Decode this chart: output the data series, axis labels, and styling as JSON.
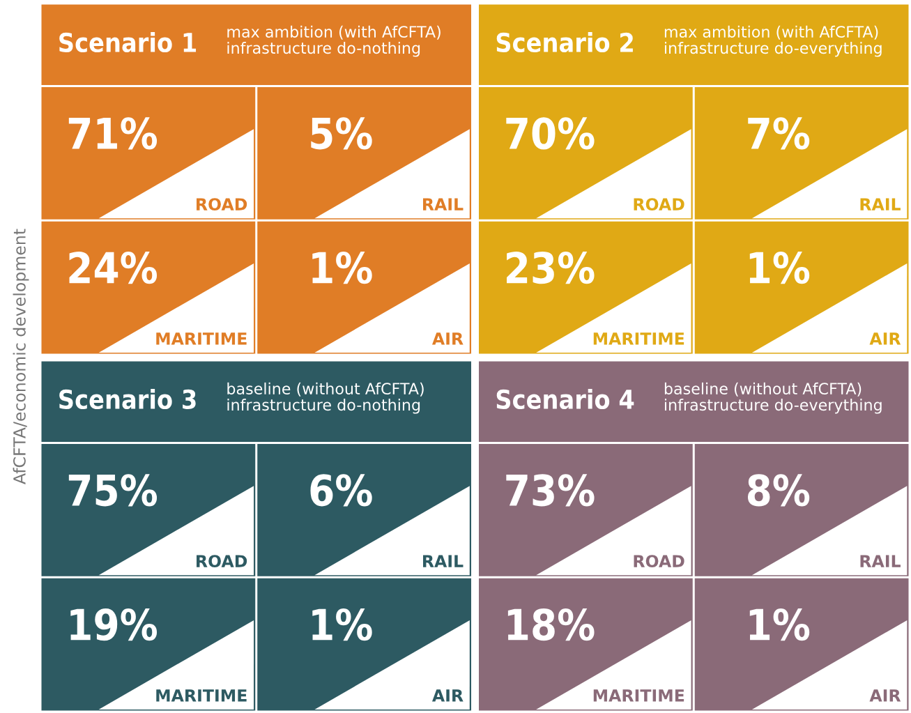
{
  "chart_data": [
    {
      "type": "other",
      "title": "Scenario 1",
      "subtitle": "max ambition (with AfCFTA)\ninfrastructure do-nothing",
      "ylabel": "AfCFTA/economic development",
      "color": "#e07d26",
      "categories": [
        "ROAD",
        "RAIL",
        "MARITIME",
        "AIR"
      ],
      "values": [
        71,
        5,
        24,
        1
      ],
      "value_labels": [
        "71%",
        "5%",
        "24%",
        "1%"
      ]
    },
    {
      "type": "other",
      "title": "Scenario 2",
      "subtitle": "max ambition (with AfCFTA)\ninfrastructure do-everything",
      "color": "#e0a915",
      "categories": [
        "ROAD",
        "RAIL",
        "MARITIME",
        "AIR"
      ],
      "values": [
        70,
        7,
        23,
        1
      ],
      "value_labels": [
        "70%",
        "7%",
        "23%",
        "1%"
      ]
    },
    {
      "type": "other",
      "title": "Scenario 3",
      "subtitle": "baseline (without AfCFTA)\ninfrastructure do-nothing",
      "color": "#2d5a62",
      "categories": [
        "ROAD",
        "RAIL",
        "MARITIME",
        "AIR"
      ],
      "values": [
        75,
        6,
        19,
        1
      ],
      "value_labels": [
        "75%",
        "6%",
        "19%",
        "1%"
      ]
    },
    {
      "type": "other",
      "title": "Scenario 4",
      "subtitle": "baseline (without AfCFTA)\ninfrastructure do-everything",
      "color": "#8a6a78",
      "categories": [
        "ROAD",
        "RAIL",
        "MARITIME",
        "AIR"
      ],
      "values": [
        73,
        8,
        18,
        1
      ],
      "value_labels": [
        "73%",
        "8%",
        "18%",
        "1%"
      ]
    }
  ]
}
